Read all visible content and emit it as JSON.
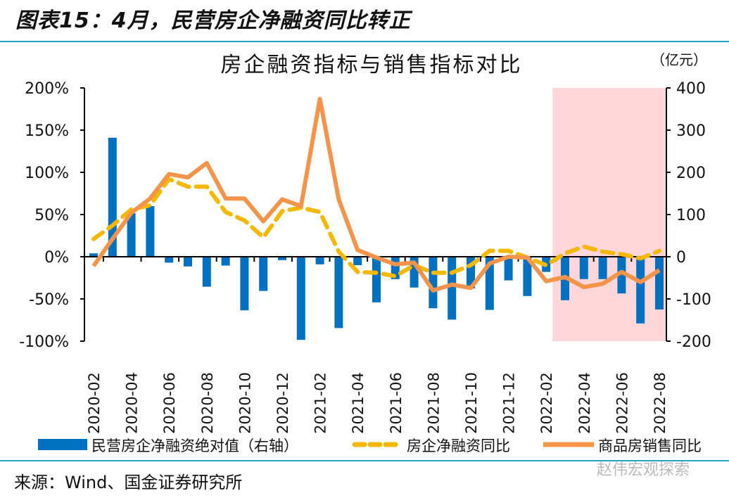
{
  "figure_title": "图表15：4月，民营房企净融资同比转正",
  "source": "来源：Wind、国金证券研究所",
  "watermark": "赵伟宏观探索",
  "colors": {
    "bar": "#0070c0",
    "dash": "#f5b800",
    "line": "#f4944a",
    "shade": "#ffd7da",
    "rule": "#2aa3c0"
  },
  "chart_data": {
    "type": "bar",
    "title": "房企融资指标与销售指标对比",
    "unit_label": "（亿元）",
    "x_tick_labels": [
      "2020-02",
      "2020-04",
      "2020-06",
      "2020-08",
      "2020-10",
      "2020-12",
      "2021-02",
      "2021-04",
      "2021-06",
      "2021-08",
      "2021-10",
      "2021-12",
      "2022-02",
      "2022-04",
      "2022-06",
      "2022-08"
    ],
    "x": [
      "2020-02",
      "2020-03",
      "2020-04",
      "2020-05",
      "2020-06",
      "2020-07",
      "2020-08",
      "2020-09",
      "2020-10",
      "2020-11",
      "2020-12",
      "2021-01",
      "2021-02",
      "2021-03",
      "2021-04",
      "2021-05",
      "2021-06",
      "2021-07",
      "2021-08",
      "2021-09",
      "2021-10",
      "2021-11",
      "2021-12",
      "2022-01",
      "2022-02",
      "2022-03",
      "2022-04",
      "2022-05",
      "2022-06",
      "2022-07",
      "2022-08"
    ],
    "y_left": {
      "range": [
        -100,
        200
      ],
      "ticks": [
        "-100%",
        "-50%",
        "0%",
        "50%",
        "100%",
        "150%",
        "200%"
      ]
    },
    "y_right": {
      "range": [
        -200,
        400
      ],
      "ticks": [
        "-200",
        "-100",
        "0",
        "100",
        "200",
        "300",
        "400"
      ]
    },
    "shaded_range": [
      "2022-02",
      "2022-08"
    ],
    "series": [
      {
        "name": "民营房企净融资绝对值（右轴）",
        "type": "bar",
        "axis": "right",
        "values": [
          8,
          282,
          103,
          120,
          -14,
          -23,
          -71,
          -21,
          -127,
          -81,
          -8,
          -197,
          -18,
          -169,
          -20,
          -108,
          -53,
          -73,
          -122,
          -149,
          -75,
          -126,
          -56,
          -93,
          -36,
          -103,
          -53,
          -53,
          -87,
          -158,
          -125
        ]
      },
      {
        "name": "房企净融资同比",
        "type": "line-dashed",
        "axis": "left",
        "values": [
          21,
          37,
          56,
          61,
          92,
          83,
          83,
          53,
          43,
          23,
          54,
          58,
          53,
          6,
          -18,
          -19,
          -23,
          -10,
          -19,
          -19,
          -10,
          7,
          7,
          -1,
          -10,
          4,
          12,
          6,
          3,
          -2,
          7
        ]
      },
      {
        "name": "商品房销售同比",
        "type": "line",
        "axis": "left",
        "values": [
          -11,
          21,
          52,
          69,
          98,
          94,
          111,
          69,
          69,
          42,
          68,
          60,
          187,
          68,
          8,
          -1,
          -9,
          -7,
          -40,
          -33,
          -37,
          -8,
          0,
          -1,
          -29,
          -24,
          -36,
          -32,
          -18,
          -30,
          -16
        ]
      }
    ],
    "legend": "bottom"
  }
}
